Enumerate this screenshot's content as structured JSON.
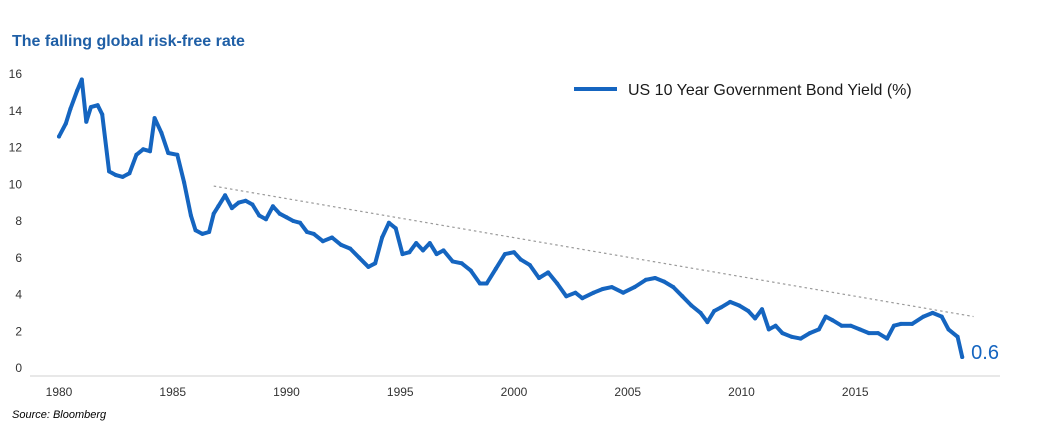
{
  "title": "The falling global risk-free rate",
  "source": "Source:  Bloomberg",
  "chart_data": {
    "type": "line",
    "title": "The falling global risk-free rate",
    "xlabel": "",
    "ylabel": "",
    "xlim": [
      1979.5,
      2020.5
    ],
    "ylim": [
      0,
      16
    ],
    "x_ticks": [
      1980,
      1985,
      1990,
      1995,
      2000,
      2005,
      2010,
      2015
    ],
    "y_ticks": [
      0,
      2,
      4,
      6,
      8,
      10,
      12,
      14,
      16
    ],
    "grid": false,
    "legend_position": "top-right",
    "series": [
      {
        "name": "US 10 Year Government Bond Yield (%)",
        "color": "#1565c0",
        "x": [
          1980.0,
          1980.3,
          1980.5,
          1980.8,
          1981.0,
          1981.2,
          1981.4,
          1981.7,
          1981.9,
          1982.2,
          1982.5,
          1982.8,
          1983.1,
          1983.4,
          1983.7,
          1984.0,
          1984.2,
          1984.5,
          1984.8,
          1985.2,
          1985.5,
          1985.8,
          1986.0,
          1986.3,
          1986.6,
          1986.8,
          1987.0,
          1987.3,
          1987.6,
          1987.9,
          1988.2,
          1988.5,
          1988.8,
          1989.1,
          1989.4,
          1989.7,
          1990.0,
          1990.3,
          1990.6,
          1990.9,
          1991.2,
          1991.6,
          1992.0,
          1992.4,
          1992.8,
          1993.2,
          1993.6,
          1993.9,
          1994.2,
          1994.5,
          1994.8,
          1995.1,
          1995.4,
          1995.7,
          1996.0,
          1996.3,
          1996.6,
          1996.9,
          1997.3,
          1997.7,
          1998.1,
          1998.5,
          1998.8,
          1999.2,
          1999.6,
          2000.0,
          2000.3,
          2000.7,
          2001.1,
          2001.5,
          2001.9,
          2002.3,
          2002.7,
          2003.0,
          2003.5,
          2003.9,
          2004.3,
          2004.8,
          2005.3,
          2005.8,
          2006.2,
          2006.6,
          2007.0,
          2007.4,
          2007.8,
          2008.2,
          2008.5,
          2008.8,
          2009.1,
          2009.5,
          2009.9,
          2010.3,
          2010.6,
          2010.9,
          2011.2,
          2011.5,
          2011.8,
          2012.2,
          2012.6,
          2013.0,
          2013.4,
          2013.7,
          2014.0,
          2014.4,
          2014.8,
          2015.2,
          2015.6,
          2016.0,
          2016.4,
          2016.7,
          2017.0,
          2017.5,
          2018.0,
          2018.4,
          2018.8,
          2019.1,
          2019.5,
          2019.7
        ],
        "values": [
          12.6,
          13.3,
          14.1,
          15.1,
          15.7,
          13.4,
          14.2,
          14.3,
          13.8,
          10.7,
          10.5,
          10.4,
          10.6,
          11.6,
          11.9,
          11.8,
          13.6,
          12.8,
          11.7,
          11.6,
          10.1,
          8.3,
          7.5,
          7.3,
          7.4,
          8.4,
          8.8,
          9.4,
          8.7,
          9.0,
          9.1,
          8.9,
          8.3,
          8.1,
          8.8,
          8.4,
          8.2,
          8.0,
          7.9,
          7.4,
          7.3,
          6.9,
          7.1,
          6.7,
          6.5,
          6.0,
          5.5,
          5.7,
          7.1,
          7.9,
          7.6,
          6.2,
          6.3,
          6.8,
          6.4,
          6.8,
          6.2,
          6.4,
          5.8,
          5.7,
          5.3,
          4.6,
          4.6,
          5.4,
          6.2,
          6.3,
          5.9,
          5.6,
          4.9,
          5.2,
          4.6,
          3.9,
          4.1,
          3.8,
          4.1,
          4.3,
          4.4,
          4.1,
          4.4,
          4.8,
          4.9,
          4.7,
          4.4,
          3.9,
          3.4,
          3.0,
          2.5,
          3.1,
          3.3,
          3.6,
          3.4,
          3.1,
          2.7,
          3.2,
          2.1,
          2.3,
          1.9,
          1.7,
          1.6,
          1.9,
          2.1,
          2.8,
          2.6,
          2.3,
          2.3,
          2.1,
          1.9,
          1.9,
          1.6,
          2.3,
          2.4,
          2.4,
          2.8,
          3.0,
          2.8,
          2.1,
          1.7,
          0.6
        ]
      }
    ],
    "trendline": {
      "style": "dotted",
      "x": [
        1986.8,
        2020.2
      ],
      "values": [
        9.9,
        2.8
      ]
    },
    "annotations": [
      {
        "text": "0.6",
        "x": 2019.7,
        "y": 0.6
      }
    ]
  }
}
